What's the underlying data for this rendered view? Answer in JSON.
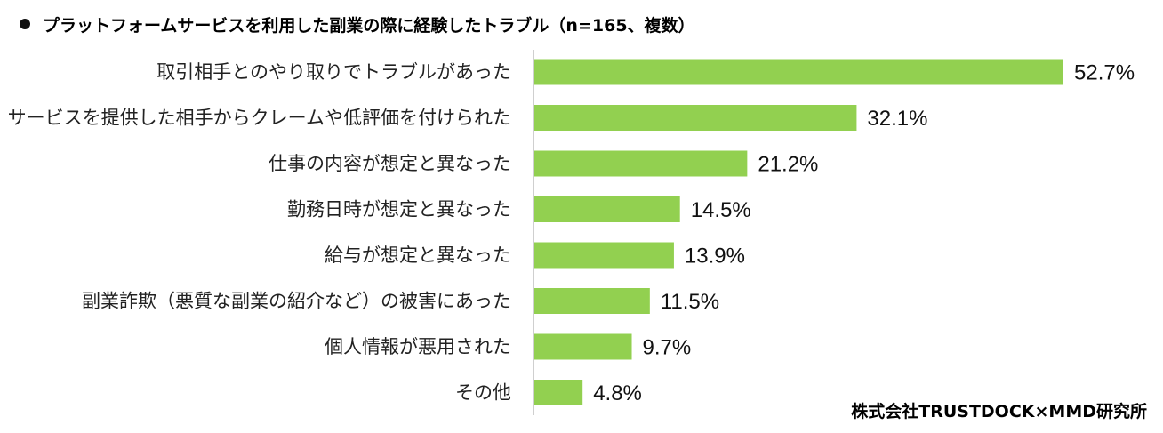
{
  "chart_data": {
    "type": "bar",
    "orientation": "horizontal",
    "title": "プラットフォームサービスを利用した副業の際に経験したトラブル（n=165、複数）",
    "categories": [
      "取引相手とのやり取りでトラブルがあった",
      "サービスを提供した相手からクレームや低評価を付けられた",
      "仕事の内容が想定と異なった",
      "勤務日時が想定と異なった",
      "給与が想定と異なった",
      "副業詐欺（悪質な副業の紹介など）の被害にあった",
      "個人情報が悪用された",
      "その他"
    ],
    "values": [
      52.7,
      32.1,
      21.2,
      14.5,
      13.9,
      11.5,
      9.7,
      4.8
    ],
    "value_labels": [
      "52.7%",
      "32.1%",
      "21.2%",
      "14.5%",
      "13.9%",
      "11.5%",
      "9.7%",
      "4.8%"
    ],
    "unit": "%",
    "xlim": [
      0,
      55
    ],
    "bar_color": "#92d050",
    "axis_color": "#bfbfbf",
    "grid": false,
    "legend": "none"
  },
  "source": "株式会社TRUSTDOCK×MMD研究所"
}
